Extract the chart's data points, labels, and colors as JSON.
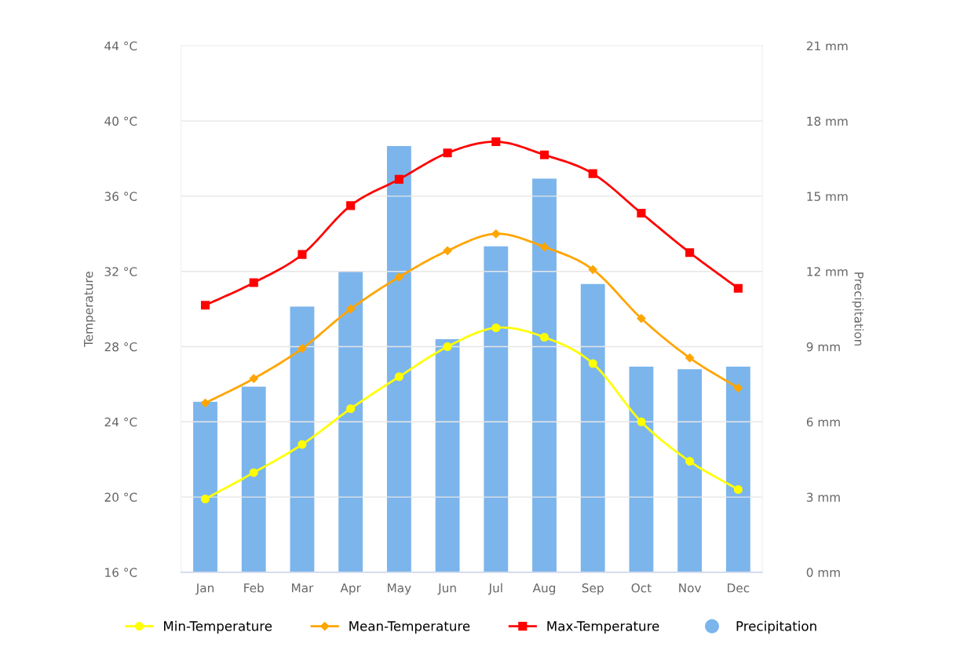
{
  "chart_data": {
    "type": "line",
    "categories": [
      "Jan",
      "Feb",
      "Mar",
      "Apr",
      "May",
      "Jun",
      "Jul",
      "Aug",
      "Sep",
      "Oct",
      "Nov",
      "Dec"
    ],
    "ylabel": "Temperature",
    "y2label": "Precipitation",
    "ylim": [
      16,
      44
    ],
    "yticks": [
      {
        "value": 16,
        "label": "16 °C"
      },
      {
        "value": 20,
        "label": "20 °C"
      },
      {
        "value": 24,
        "label": "24 °C"
      },
      {
        "value": 28,
        "label": "28 °C"
      },
      {
        "value": 32,
        "label": "32 °C"
      },
      {
        "value": 36,
        "label": "36 °C"
      },
      {
        "value": 40,
        "label": "40 °C"
      },
      {
        "value": 44,
        "label": "44 °C"
      }
    ],
    "y2lim": [
      0,
      21
    ],
    "y2ticks": [
      {
        "value": 0,
        "label": "0 mm"
      },
      {
        "value": 3,
        "label": "3 mm"
      },
      {
        "value": 6,
        "label": "6 mm"
      },
      {
        "value": 9,
        "label": "9 mm"
      },
      {
        "value": 12,
        "label": "12 mm"
      },
      {
        "value": 15,
        "label": "15 mm"
      },
      {
        "value": 18,
        "label": "18 mm"
      },
      {
        "value": 21,
        "label": "21 mm"
      }
    ],
    "grid": "y",
    "legend": "bottom",
    "series": [
      {
        "name": "Min-Temperature",
        "color": "#ffff00",
        "marker": "circle",
        "values": [
          19.9,
          21.3,
          22.8,
          24.7,
          26.4,
          28.0,
          29.0,
          28.5,
          27.1,
          24.0,
          21.9,
          20.4
        ]
      },
      {
        "name": "Mean-Temperature",
        "color": "#ffa500",
        "marker": "diamond",
        "values": [
          25.0,
          26.3,
          27.9,
          30.0,
          31.7,
          33.1,
          34.0,
          33.3,
          32.1,
          29.5,
          27.4,
          25.8
        ]
      },
      {
        "name": "Max-Temperature",
        "color": "#ff0000",
        "marker": "square",
        "values": [
          30.2,
          31.4,
          32.9,
          35.5,
          36.9,
          38.3,
          38.9,
          38.2,
          37.2,
          35.1,
          33.0,
          31.1
        ]
      },
      {
        "name": "Precipitation",
        "type": "bar",
        "axis": "y2",
        "color": "#7cb5ec",
        "marker": "circle",
        "values": [
          6.8,
          7.4,
          10.6,
          12.0,
          17.0,
          9.3,
          13.0,
          15.7,
          11.5,
          8.2,
          8.1,
          8.2
        ]
      }
    ]
  }
}
